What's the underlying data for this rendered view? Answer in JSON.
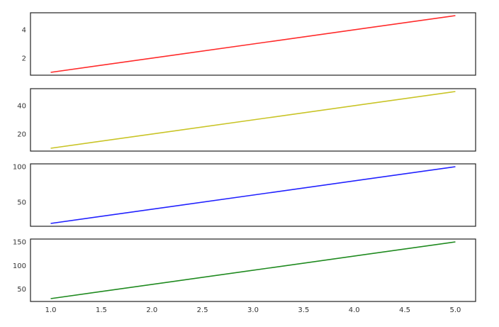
{
  "chart_data": [
    {
      "type": "line",
      "x": [
        1.0,
        5.0
      ],
      "series": [
        {
          "values": [
            1,
            5
          ],
          "color": "#ff2a2a"
        }
      ],
      "xlim": [
        0.8,
        5.2
      ],
      "ylim": [
        0.8,
        5.2
      ],
      "yticks": [
        2,
        4
      ],
      "xticks_visible": false,
      "grid": false
    },
    {
      "type": "line",
      "x": [
        1.0,
        5.0
      ],
      "series": [
        {
          "values": [
            10,
            50
          ],
          "color": "#c9c426"
        }
      ],
      "xlim": [
        0.8,
        5.2
      ],
      "ylim": [
        8,
        52
      ],
      "yticks": [
        20,
        40
      ],
      "xticks_visible": false,
      "grid": false
    },
    {
      "type": "line",
      "x": [
        1.0,
        5.0
      ],
      "series": [
        {
          "values": [
            20,
            100
          ],
          "color": "#2121ff"
        }
      ],
      "xlim": [
        0.8,
        5.2
      ],
      "ylim": [
        16,
        104
      ],
      "yticks": [
        50,
        100
      ],
      "xticks_visible": false,
      "grid": false
    },
    {
      "type": "line",
      "x": [
        1.0,
        5.0
      ],
      "series": [
        {
          "values": [
            30,
            150
          ],
          "color": "#1f8a1f"
        }
      ],
      "xlim": [
        0.8,
        5.2
      ],
      "ylim": [
        24,
        156
      ],
      "yticks": [
        50,
        100,
        150
      ],
      "xticks": [
        1.0,
        1.5,
        2.0,
        2.5,
        3.0,
        3.5,
        4.0,
        4.5,
        5.0
      ],
      "xtick_labels": [
        "1.0",
        "1.5",
        "2.0",
        "2.5",
        "3.0",
        "3.5",
        "4.0",
        "4.5",
        "5.0"
      ],
      "xticks_visible": true,
      "grid": false
    }
  ]
}
